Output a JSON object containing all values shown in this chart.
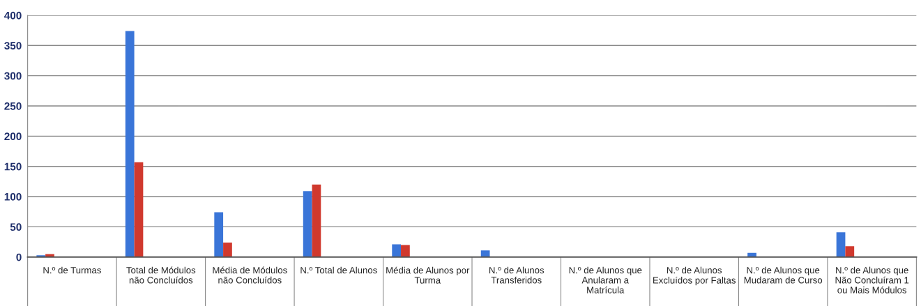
{
  "chart_data": {
    "type": "bar",
    "categories": [
      "N.º de Turmas",
      "Total de Módulos\nnão Concluídos",
      "Média de Módulos\nnão Concluídos",
      "N.º Total de Alunos",
      "Média de Alunos por\nTurma",
      "N.º de Alunos\nTransferidos",
      "N.º de Alunos que\nAnularam a\nMatrícula",
      "N.º de Alunos\nExcluídos por Faltas",
      "N.º de Alunos que\nMudaram de Curso",
      "N.º de Alunos que\nNão Concluíram 1\nou Mais Módulos"
    ],
    "series": [
      {
        "color": "#3a75d8",
        "values": [
          3,
          374,
          74,
          109,
          21,
          11,
          1,
          1,
          7,
          41
        ]
      },
      {
        "color": "#d0392e",
        "values": [
          5,
          157,
          24,
          120,
          20,
          1,
          1,
          0,
          0,
          18
        ]
      }
    ],
    "ylim": [
      0,
      400
    ],
    "yticks": [
      0,
      50,
      100,
      150,
      200,
      250,
      300,
      350,
      400
    ],
    "grid": "y"
  }
}
